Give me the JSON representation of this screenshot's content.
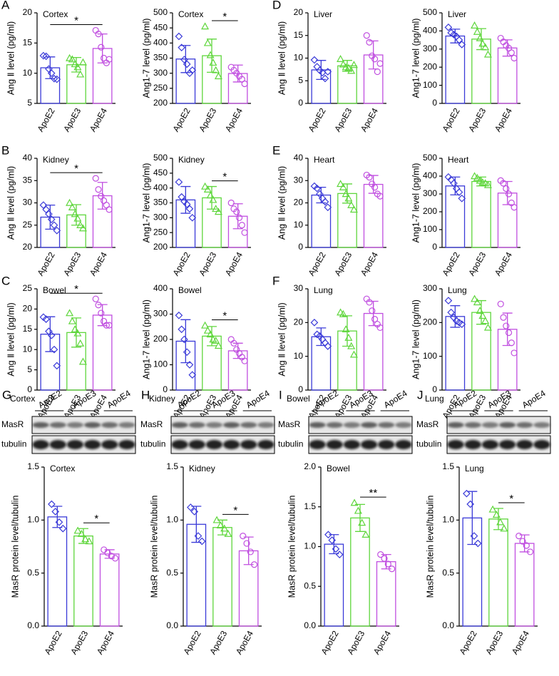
{
  "chart_data": [
    {
      "type": "bar",
      "panel": "A",
      "title": "Cortex",
      "ylabel": "Ang Ⅱ level (pg/ml)",
      "categories": [
        "ApoE2",
        "ApoE3",
        "ApoE4"
      ],
      "colors": [
        "#3a3ad8",
        "#5fd63c",
        "#c04ee0"
      ],
      "markers": [
        "diamond",
        "triangle",
        "circle"
      ],
      "values": [
        10.9,
        11.4,
        14.1
      ],
      "errors": [
        1.8,
        1.2,
        2.4
      ],
      "points": [
        [
          12.9,
          12.8,
          10.7,
          10.0,
          9.1,
          9.0
        ],
        [
          12.5,
          12.3,
          11.5,
          11.0,
          9.8,
          11.8
        ],
        [
          17.1,
          16.5,
          14.3,
          12.5,
          11.7,
          12.3
        ]
      ],
      "ylim": [
        5,
        20
      ],
      "yticks": [
        5,
        10,
        15,
        20
      ],
      "significance": {
        "text": "*",
        "between": [
          "ApoE2",
          "ApoE4"
        ]
      }
    },
    {
      "type": "bar",
      "title": "Cortex",
      "ylabel": "Ang1-7 level (pg/ml)",
      "categories": [
        "ApoE2",
        "ApoE3",
        "ApoE4"
      ],
      "colors": [
        "#3a3ad8",
        "#5fd63c",
        "#c04ee0"
      ],
      "markers": [
        "diamond",
        "triangle",
        "circle"
      ],
      "values": [
        347,
        358,
        299
      ],
      "errors": [
        45,
        55,
        28
      ],
      "points": [
        [
          422,
          385,
          345,
          330,
          300,
          310
        ],
        [
          455,
          400,
          360,
          335,
          310,
          290
        ],
        [
          320,
          310,
          300,
          290,
          280,
          265
        ]
      ],
      "ylim": [
        200,
        500
      ],
      "yticks": [
        200,
        250,
        300,
        350,
        400,
        450,
        500
      ],
      "significance": {
        "text": "*",
        "between": [
          "ApoE3",
          "ApoE4"
        ]
      }
    },
    {
      "type": "bar",
      "panel": "D",
      "title": "Liver",
      "ylabel": "Ang Ⅱ level (pg/ml)",
      "categories": [
        "ApoE2",
        "ApoE3",
        "ApoE4"
      ],
      "colors": [
        "#3a3ad8",
        "#5fd63c",
        "#c04ee0"
      ],
      "markers": [
        "diamond",
        "triangle",
        "circle"
      ],
      "values": [
        7.4,
        8.3,
        10.7
      ],
      "errors": [
        2.1,
        1.2,
        3.1
      ],
      "points": [
        [
          9.6,
          8.1,
          7.3,
          6.8,
          5.5,
          7.0
        ],
        [
          9.8,
          8.6,
          8.0,
          7.8,
          7.2,
          8.5
        ],
        [
          15.0,
          13.5,
          10.5,
          9.8,
          7.0,
          8.8
        ]
      ],
      "ylim": [
        0,
        20
      ],
      "yticks": [
        0,
        5,
        10,
        15,
        20
      ]
    },
    {
      "type": "bar",
      "title": "Liver",
      "ylabel": "Ang1-7 level (pg/ml)",
      "categories": [
        "ApoE2",
        "ApoE3",
        "ApoE4"
      ],
      "colors": [
        "#3a3ad8",
        "#5fd63c",
        "#c04ee0"
      ],
      "markers": [
        "diamond",
        "triangle",
        "circle"
      ],
      "values": [
        372,
        355,
        306
      ],
      "errors": [
        38,
        58,
        45
      ],
      "points": [
        [
          420,
          390,
          380,
          370,
          350,
          325
        ],
        [
          430,
          395,
          360,
          330,
          310,
          270
        ],
        [
          360,
          340,
          320,
          305,
          280,
          250
        ]
      ],
      "ylim": [
        0,
        500
      ],
      "yticks": [
        0,
        100,
        200,
        300,
        400,
        500
      ]
    },
    {
      "type": "bar",
      "panel": "B",
      "title": "Kidney",
      "ylabel": "Ang Ⅱ level (pg/ml)",
      "categories": [
        "ApoE2",
        "ApoE3",
        "ApoE4"
      ],
      "colors": [
        "#3a3ad8",
        "#5fd63c",
        "#c04ee0"
      ],
      "markers": [
        "diamond",
        "triangle",
        "circle"
      ],
      "values": [
        26.8,
        27.3,
        31.6
      ],
      "errors": [
        2.7,
        2.3,
        3.0
      ],
      "points": [
        [
          29.5,
          28.5,
          27.5,
          26.3,
          25.0,
          23.8
        ],
        [
          30.0,
          29.0,
          27.5,
          26.5,
          25.0,
          24.3
        ],
        [
          35.5,
          33.0,
          31.5,
          30.5,
          29.5,
          28.5
        ]
      ],
      "ylim": [
        20,
        40
      ],
      "yticks": [
        20,
        25,
        30,
        35,
        40
      ],
      "significance": {
        "text": "*",
        "between": [
          "ApoE2",
          "ApoE4"
        ]
      }
    },
    {
      "type": "bar",
      "title": "Kidney",
      "ylabel": "Ang1-7 level (pg/ml)",
      "categories": [
        "ApoE2",
        "ApoE3",
        "ApoE4"
      ],
      "colors": [
        "#3a3ad8",
        "#5fd63c",
        "#c04ee0"
      ],
      "markers": [
        "diamond",
        "triangle",
        "circle"
      ],
      "values": [
        360,
        367,
        305
      ],
      "errors": [
        45,
        38,
        42
      ],
      "points": [
        [
          420,
          370,
          355,
          345,
          330,
          300
        ],
        [
          405,
          395,
          375,
          360,
          330,
          320
        ],
        [
          350,
          330,
          320,
          300,
          275,
          250
        ]
      ],
      "ylim": [
        200,
        500
      ],
      "yticks": [
        200,
        250,
        300,
        350,
        400,
        450,
        500
      ],
      "significance": {
        "text": "*",
        "between": [
          "ApoE3",
          "ApoE4"
        ]
      }
    },
    {
      "type": "bar",
      "panel": "E",
      "title": "Heart",
      "ylabel": "Ang Ⅱ level (pg/ml)",
      "categories": [
        "ApoE2",
        "ApoE3",
        "ApoE4"
      ],
      "colors": [
        "#3a3ad8",
        "#5fd63c",
        "#c04ee0"
      ],
      "markers": [
        "diamond",
        "triangle",
        "circle"
      ],
      "values": [
        23.5,
        24.2,
        28.3
      ],
      "errors": [
        3.5,
        4.3,
        4.0
      ],
      "points": [
        [
          27.5,
          26.5,
          24.0,
          22.0,
          20.5,
          18.0
        ],
        [
          28.5,
          27.0,
          24.0,
          22.0,
          19.0,
          17.0
        ],
        [
          32.5,
          31.5,
          28.5,
          27.0,
          24.0,
          23.0
        ]
      ],
      "ylim": [
        0,
        40
      ],
      "yticks": [
        0,
        10,
        20,
        30,
        40
      ]
    },
    {
      "type": "bar",
      "title": "Heart",
      "ylabel": "Ang1-7 level (pg/ml)",
      "categories": [
        "ApoE2",
        "ApoE3",
        "ApoE4"
      ],
      "colors": [
        "#3a3ad8",
        "#5fd63c",
        "#c04ee0"
      ],
      "markers": [
        "diamond",
        "triangle",
        "circle"
      ],
      "values": [
        345,
        370,
        305
      ],
      "errors": [
        50,
        25,
        65
      ],
      "points": [
        [
          395,
          380,
          360,
          330,
          310,
          275
        ],
        [
          400,
          390,
          375,
          365,
          360,
          350
        ],
        [
          375,
          360,
          330,
          300,
          250,
          225
        ]
      ],
      "ylim": [
        0,
        500
      ],
      "yticks": [
        0,
        100,
        200,
        300,
        400,
        500
      ]
    },
    {
      "type": "bar",
      "panel": "C",
      "title": "Bowel",
      "ylabel": "Ang Ⅱ level (pg/ml)",
      "categories": [
        "ApoE2",
        "ApoE3",
        "ApoE4"
      ],
      "colors": [
        "#3a3ad8",
        "#5fd63c",
        "#c04ee0"
      ],
      "markers": [
        "diamond",
        "triangle",
        "circle"
      ],
      "values": [
        13.8,
        14.2,
        18.5
      ],
      "errors": [
        4.3,
        3.6,
        2.6
      ],
      "points": [
        [
          18.0,
          17.5,
          14.5,
          13.5,
          10.0,
          6.0
        ],
        [
          19.0,
          17.0,
          15.0,
          14.0,
          11.5,
          7.0
        ],
        [
          22.5,
          21.0,
          19.0,
          17.0,
          16.0,
          16.0
        ]
      ],
      "ylim": [
        0,
        25
      ],
      "yticks": [
        0,
        5,
        10,
        15,
        20,
        25
      ],
      "significance": {
        "text": "*",
        "between": [
          "ApoE2",
          "ApoE4"
        ]
      }
    },
    {
      "type": "bar",
      "title": "Bowel",
      "ylabel": "Ang1-7 level (pg/ml)",
      "categories": [
        "ApoE2",
        "ApoE3",
        "ApoE4"
      ],
      "colors": [
        "#3a3ad8",
        "#5fd63c",
        "#c04ee0"
      ],
      "markers": [
        "diamond",
        "triangle",
        "circle"
      ],
      "values": [
        193,
        213,
        155
      ],
      "errors": [
        85,
        38,
        30
      ],
      "points": [
        [
          295,
          240,
          200,
          150,
          100,
          60
        ],
        [
          255,
          235,
          220,
          200,
          195,
          175
        ],
        [
          200,
          185,
          160,
          145,
          130,
          115
        ]
      ],
      "ylim": [
        0,
        400
      ],
      "yticks": [
        0,
        100,
        200,
        300,
        400
      ],
      "significance": {
        "text": "*",
        "between": [
          "ApoE3",
          "ApoE4"
        ]
      }
    },
    {
      "type": "bar",
      "panel": "F",
      "title": "Lung",
      "ylabel": "Ang Ⅱ level (pg/ml)",
      "categories": [
        "ApoE2",
        "ApoE3",
        "ApoE4"
      ],
      "colors": [
        "#3a3ad8",
        "#5fd63c",
        "#c04ee0"
      ],
      "markers": [
        "diamond",
        "triangle",
        "circle"
      ],
      "values": [
        15.8,
        17.5,
        22.7
      ],
      "errors": [
        2.6,
        4.5,
        3.6
      ],
      "points": [
        [
          20.0,
          16.5,
          16.0,
          15.0,
          14.0,
          13.0
        ],
        [
          23.0,
          22.5,
          18.0,
          15.5,
          13.0,
          10.5
        ],
        [
          27.0,
          26.0,
          23.5,
          21.0,
          19.5,
          18.5
        ]
      ],
      "ylim": [
        0,
        30
      ],
      "yticks": [
        0,
        10,
        20,
        30
      ]
    },
    {
      "type": "bar",
      "title": "Lung",
      "ylabel": "Ang1-7 level (pg/ml)",
      "categories": [
        "ApoE2",
        "ApoE3",
        "ApoE4"
      ],
      "colors": [
        "#3a3ad8",
        "#5fd63c",
        "#c04ee0"
      ],
      "markers": [
        "diamond",
        "triangle",
        "circle"
      ],
      "values": [
        218,
        230,
        180
      ],
      "errors": [
        32,
        35,
        48
      ],
      "points": [
        [
          265,
          230,
          215,
          205,
          200,
          195
        ],
        [
          270,
          260,
          235,
          220,
          205,
          185
        ],
        [
          255,
          215,
          190,
          170,
          140,
          110
        ]
      ],
      "ylim": [
        0,
        300
      ],
      "yticks": [
        0,
        100,
        200,
        300
      ]
    },
    {
      "type": "bar",
      "panel": "G",
      "blot": {
        "title": "Cortex",
        "lanes": [
          "ApoE2",
          "ApoE3",
          "ApoE4"
        ],
        "rows": [
          "MasR",
          "tubulin"
        ]
      },
      "title": "Cortex",
      "ylabel": "MasR protein level/tubulin",
      "categories": [
        "ApoE2",
        "ApoE3",
        "ApoE4"
      ],
      "colors": [
        "#3a3ad8",
        "#5fd63c",
        "#c04ee0"
      ],
      "markers": [
        "diamond",
        "triangle",
        "circle"
      ],
      "values": [
        1.03,
        0.85,
        0.68
      ],
      "errors": [
        0.1,
        0.07,
        0.04
      ],
      "points": [
        [
          1.15,
          1.08,
          0.98,
          0.92
        ],
        [
          0.9,
          0.87,
          0.82,
          0.8
        ],
        [
          0.72,
          0.69,
          0.66,
          0.64
        ]
      ],
      "ylim": [
        0,
        1.5
      ],
      "yticks": [
        {
          "value": 0,
          "label": "0.0"
        },
        {
          "value": 0.5,
          "label": "0.5"
        },
        {
          "value": 1,
          "label": "1.0"
        },
        {
          "value": 1.5,
          "label": "1.5"
        }
      ],
      "significance": {
        "text": "*",
        "between": [
          "ApoE3",
          "ApoE4"
        ]
      }
    },
    {
      "type": "bar",
      "panel": "H",
      "blot": {
        "title": "Kidney",
        "lanes": [
          "ApoE2",
          "ApoE3",
          "ApoE4"
        ],
        "rows": [
          "MasR",
          "tubulin"
        ]
      },
      "title": "Kidney",
      "ylabel": "MasR protein level/tubulin",
      "categories": [
        "ApoE2",
        "ApoE3",
        "ApoE4"
      ],
      "colors": [
        "#3a3ad8",
        "#5fd63c",
        "#c04ee0"
      ],
      "markers": [
        "diamond",
        "triangle",
        "circle"
      ],
      "values": [
        0.96,
        0.93,
        0.71
      ],
      "errors": [
        0.17,
        0.07,
        0.13
      ],
      "points": [
        [
          1.12,
          1.08,
          0.85,
          0.8
        ],
        [
          1.0,
          0.95,
          0.92,
          0.87
        ],
        [
          0.85,
          0.78,
          0.7,
          0.58
        ]
      ],
      "ylim": [
        0,
        1.5
      ],
      "yticks": [
        {
          "value": 0,
          "label": "0.0"
        },
        {
          "value": 0.5,
          "label": "0.5"
        },
        {
          "value": 1,
          "label": "1.0"
        },
        {
          "value": 1.5,
          "label": "1.5"
        }
      ],
      "significance": {
        "text": "*",
        "between": [
          "ApoE3",
          "ApoE4"
        ]
      }
    },
    {
      "type": "bar",
      "panel": "I",
      "blot": {
        "title": "Bowel",
        "lanes": [
          "ApoE2",
          "ApoE3",
          "ApoE4"
        ],
        "rows": [
          "MasR",
          "tubulin"
        ]
      },
      "title": "Bowel",
      "ylabel": "MasR protein level/tubulin",
      "categories": [
        "ApoE2",
        "ApoE3",
        "ApoE4"
      ],
      "colors": [
        "#3a3ad8",
        "#5fd63c",
        "#c04ee0"
      ],
      "markers": [
        "diamond",
        "triangle",
        "circle"
      ],
      "values": [
        1.03,
        1.36,
        0.81
      ],
      "errors": [
        0.12,
        0.17,
        0.09
      ],
      "points": [
        [
          1.15,
          1.08,
          0.97,
          0.9
        ],
        [
          1.55,
          1.45,
          1.3,
          1.15
        ],
        [
          0.9,
          0.85,
          0.78,
          0.72
        ]
      ],
      "ylim": [
        0,
        2
      ],
      "yticks": [
        {
          "value": 0,
          "label": "0.0"
        },
        {
          "value": 0.5,
          "label": "0.5"
        },
        {
          "value": 1,
          "label": "1.0"
        },
        {
          "value": 1.5,
          "label": "1.5"
        },
        {
          "value": 2,
          "label": "2.0"
        }
      ],
      "significance": {
        "text": "**",
        "between": [
          "ApoE3",
          "ApoE4"
        ]
      }
    },
    {
      "type": "bar",
      "panel": "J",
      "blot": {
        "title": "Lung",
        "lanes": [
          "ApoE2",
          "ApoE3",
          "ApoE4"
        ],
        "rows": [
          "MasR",
          "tubulin"
        ]
      },
      "title": "Lung",
      "ylabel": "MasR protein level/tubulin",
      "categories": [
        "ApoE2",
        "ApoE3",
        "ApoE4"
      ],
      "colors": [
        "#3a3ad8",
        "#5fd63c",
        "#c04ee0"
      ],
      "markers": [
        "diamond",
        "triangle",
        "circle"
      ],
      "values": [
        1.02,
        1.01,
        0.78
      ],
      "errors": [
        0.25,
        0.1,
        0.08
      ],
      "points": [
        [
          1.25,
          1.15,
          0.85,
          0.78
        ],
        [
          1.1,
          1.05,
          0.98,
          0.92
        ],
        [
          0.85,
          0.8,
          0.76,
          0.7
        ]
      ],
      "ylim": [
        0,
        1.5
      ],
      "yticks": [
        {
          "value": 0,
          "label": "0.0"
        },
        {
          "value": 0.5,
          "label": "0.5"
        },
        {
          "value": 1,
          "label": "1.0"
        },
        {
          "value": 1.5,
          "label": "1.5"
        }
      ],
      "significance": {
        "text": "*",
        "between": [
          "ApoE3",
          "ApoE4"
        ]
      }
    }
  ]
}
